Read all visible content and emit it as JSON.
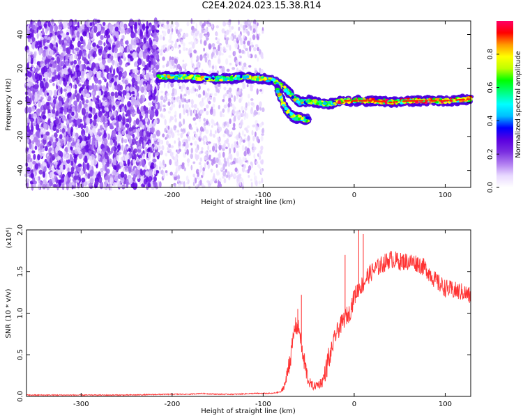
{
  "title": "C2E4.2024.023.15.38.R14",
  "chart_data": [
    {
      "type": "heatmap",
      "title": "C2E4.2024.023.15.38.R14",
      "xlabel": "Height of straight line (km)",
      "ylabel": "Frequency (Hz)",
      "xlim": [
        -360,
        128
      ],
      "ylim": [
        -50,
        48
      ],
      "xticks": [
        -300,
        -200,
        -100,
        0,
        100
      ],
      "xtick_labels": [
        "-300",
        "-200",
        "-100",
        "0",
        "100"
      ],
      "yticks": [
        -40,
        -20,
        0,
        20,
        40
      ],
      "ytick_labels": [
        "-40",
        "-20",
        "0",
        "20",
        "40"
      ],
      "colorbar": {
        "label": "Normalized spectral amplitude",
        "range": [
          0,
          1
        ],
        "ticks": [
          0,
          0.2,
          0.4,
          0.6,
          0.8
        ],
        "tick_labels": [
          "0.0",
          "0.2",
          "0.4",
          "0.6",
          "0.8"
        ],
        "colormap": [
          "#ffffff",
          "#e8d8ff",
          "#b07cf0",
          "#7a2ee0",
          "#5a00e0",
          "#0000ff",
          "#00bfff",
          "#00ffff",
          "#00ff7f",
          "#00ff00",
          "#bfff00",
          "#ffff00",
          "#ff9900",
          "#ff0000",
          "#ff0066"
        ]
      },
      "ridge": {
        "x": [
          -215,
          -200,
          -180,
          -160,
          -140,
          -120,
          -100,
          -90,
          -80,
          -70,
          -60,
          -50,
          -40,
          -30,
          -20,
          -10,
          0,
          20,
          40,
          60,
          80,
          100,
          128
        ],
        "y": [
          15,
          15,
          15,
          14,
          14,
          15,
          14,
          13,
          10,
          5,
          0,
          1,
          0,
          -1,
          0,
          1,
          1,
          1,
          0,
          1,
          1,
          1,
          2
        ]
      },
      "ridge_spur": {
        "x": [
          -85,
          -80,
          -75,
          -70,
          -65,
          -60,
          -55,
          -50
        ],
        "y": [
          8,
          2,
          -4,
          -7,
          -9,
          -9,
          -10,
          -10
        ]
      },
      "noise_region": {
        "dense_x": [
          -360,
          -215
        ],
        "sparse_x": [
          -215,
          -100
        ]
      }
    },
    {
      "type": "line",
      "title": "",
      "xlabel": "Height of straight line (km)",
      "ylabel": "SNR (10 * v/v)",
      "yscale_label": "(x10⁴)",
      "xlim": [
        -360,
        128
      ],
      "ylim": [
        0,
        2.0
      ],
      "xticks": [
        -300,
        -200,
        -100,
        0,
        100
      ],
      "xtick_labels": [
        "-300",
        "-200",
        "-100",
        "0",
        "100"
      ],
      "yticks": [
        0,
        0.5,
        1.0,
        1.5,
        2.0
      ],
      "ytick_labels": [
        "0.0",
        "0.5",
        "1.0",
        "1.5",
        "2.0"
      ],
      "color": "#ff3333",
      "series": [
        {
          "name": "",
          "x": [
            -360,
            -300,
            -250,
            -200,
            -180,
            -170,
            -150,
            -130,
            -110,
            -100,
            -90,
            -80,
            -75,
            -70,
            -65,
            -60,
            -55,
            -50,
            -45,
            -40,
            -35,
            -30,
            -25,
            -20,
            -15,
            -10,
            -5,
            0,
            5,
            10,
            15,
            20,
            30,
            40,
            50,
            60,
            70,
            80,
            90,
            100,
            110,
            120,
            128
          ],
          "y": [
            0.01,
            0.01,
            0.01,
            0.02,
            0.02,
            0.03,
            0.02,
            0.02,
            0.03,
            0.03,
            0.03,
            0.05,
            0.15,
            0.45,
            0.85,
            0.8,
            0.35,
            0.15,
            0.1,
            0.12,
            0.15,
            0.3,
            0.55,
            0.75,
            0.85,
            0.95,
            1.0,
            1.2,
            1.3,
            1.35,
            1.45,
            1.5,
            1.58,
            1.65,
            1.62,
            1.62,
            1.6,
            1.52,
            1.38,
            1.3,
            1.27,
            1.25,
            1.2
          ]
        }
      ],
      "spikes": [
        {
          "x": -58,
          "y": 1.22
        },
        {
          "x": -62,
          "y": 1.05
        },
        {
          "x": 5,
          "y": 2.0
        },
        {
          "x": -10,
          "y": 1.7
        },
        {
          "x": 10,
          "y": 1.95
        }
      ]
    }
  ]
}
